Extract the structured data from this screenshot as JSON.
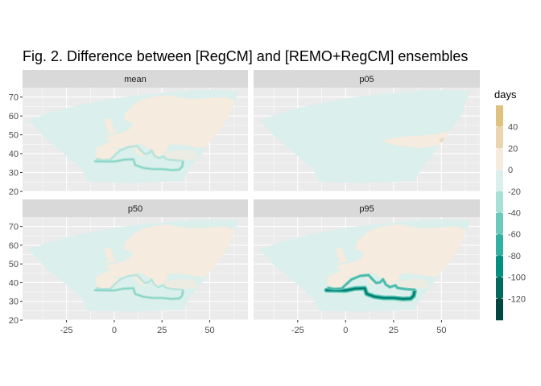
{
  "chart_data": {
    "type": "heatmap",
    "title": "Fig. 2. Difference between [RegCM] and [REMO+RegCM] ensembles",
    "xlabel": "",
    "ylabel": "",
    "xlim": [
      -48,
      70
    ],
    "ylim": [
      20,
      75
    ],
    "x_ticks": [
      -25,
      0,
      25,
      50
    ],
    "y_ticks": [
      20,
      30,
      40,
      50,
      60,
      70
    ],
    "grid": true,
    "facets": [
      "mean",
      "p05",
      "p50",
      "p95"
    ],
    "legend": {
      "title": "days",
      "position": "right",
      "labels": [
        "40",
        "20",
        "0",
        "-20",
        "-40",
        "-60",
        "-80",
        "-100",
        "-120"
      ],
      "bins": [
        {
          "value": 50,
          "color": "#dfc27d"
        },
        {
          "value": 30,
          "color": "#e9d6b1"
        },
        {
          "value": 10,
          "color": "#f5ebde"
        },
        {
          "value": -10,
          "color": "#dbefec"
        },
        {
          "value": -30,
          "color": "#a6e0d6"
        },
        {
          "value": -50,
          "color": "#6ccabb"
        },
        {
          "value": -70,
          "color": "#33b0a0"
        },
        {
          "value": -90,
          "color": "#008f80"
        },
        {
          "value": -110,
          "color": "#006a5e"
        },
        {
          "value": -130,
          "color": "#01463f"
        }
      ]
    },
    "colors": {
      "panel_background": "#ebebeb",
      "grid": "#ffffff",
      "strip_background": "#d9d9d9",
      "near_zero_negative": "#dbefec",
      "near_zero_positive": "#f5ebde"
    }
  }
}
